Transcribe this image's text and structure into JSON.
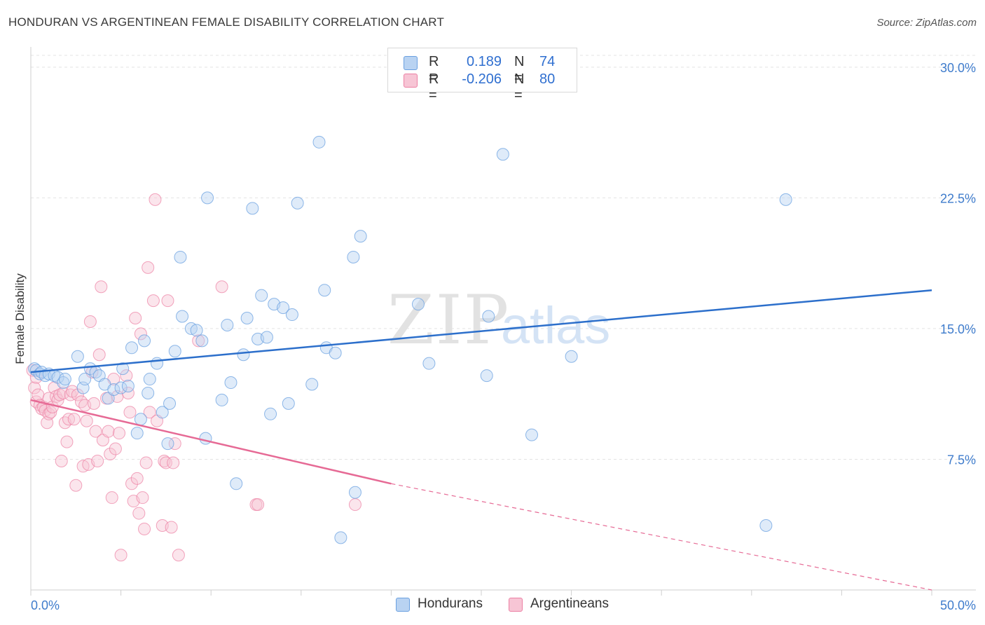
{
  "header": {
    "title": "HONDURAN VS ARGENTINEAN FEMALE DISABILITY CORRELATION CHART",
    "source": "Source: ZipAtlas.com"
  },
  "watermark": {
    "zip": "ZIP",
    "atlas": "atlas"
  },
  "legend": {
    "rows": [
      {
        "r_label": "R =",
        "r_value": "0.189",
        "n_label": "N =",
        "n_value": "74",
        "color": "#a9c8ee"
      },
      {
        "r_label": "R =",
        "r_value": "-0.206",
        "n_label": "N =",
        "n_value": "80",
        "color": "#f6b8cc"
      }
    ]
  },
  "bottom_legend": {
    "hondurans": "Hondurans",
    "argentineans": "Argentineans"
  },
  "chart_data": {
    "type": "scatter",
    "title": "HONDURAN VS ARGENTINEAN FEMALE DISABILITY CORRELATION CHART",
    "ylabel": "Female Disability",
    "xlabel": "",
    "xlim": [
      0,
      50
    ],
    "ylim": [
      0,
      31
    ],
    "x_tick_labels": [
      "0.0%",
      "50.0%"
    ],
    "y_ticks": [
      7.5,
      15.0,
      22.5,
      30.0
    ],
    "y_tick_labels": [
      "7.5%",
      "15.0%",
      "22.5%",
      "30.0%"
    ],
    "grid": "horizontal dashed",
    "legend_position": "top-center",
    "colors": {
      "hondurans": "#6aa0e0",
      "hondurans_fill": "#b9d3f2",
      "argentineans": "#ec7fa3",
      "argentineans_fill": "#f7c5d5",
      "hondurans_line": "#2c6fcb",
      "argentineans_line": "#e66a95"
    },
    "series": [
      {
        "name": "Hondurans",
        "trend": {
          "x": [
            0,
            50
          ],
          "y": [
            12.5,
            17.2
          ]
        },
        "points": [
          [
            0.2,
            12.7
          ],
          [
            0.3,
            12.6
          ],
          [
            0.5,
            12.4
          ],
          [
            0.6,
            12.5
          ],
          [
            0.8,
            12.3
          ],
          [
            1.0,
            12.4
          ],
          [
            1.3,
            12.3
          ],
          [
            1.5,
            12.2
          ],
          [
            1.8,
            11.9
          ],
          [
            1.9,
            12.1
          ],
          [
            2.6,
            13.4
          ],
          [
            2.9,
            11.6
          ],
          [
            3.0,
            12.1
          ],
          [
            3.3,
            12.7
          ],
          [
            3.6,
            12.5
          ],
          [
            3.8,
            12.3
          ],
          [
            4.1,
            11.8
          ],
          [
            4.3,
            11.0
          ],
          [
            4.6,
            11.5
          ],
          [
            5.0,
            11.6
          ],
          [
            5.1,
            12.7
          ],
          [
            5.4,
            11.7
          ],
          [
            5.6,
            13.9
          ],
          [
            5.9,
            9.0
          ],
          [
            6.1,
            9.8
          ],
          [
            6.3,
            14.3
          ],
          [
            6.5,
            11.3
          ],
          [
            6.6,
            12.1
          ],
          [
            7.0,
            13.0
          ],
          [
            7.3,
            10.2
          ],
          [
            7.6,
            8.4
          ],
          [
            7.7,
            10.7
          ],
          [
            8.0,
            13.7
          ],
          [
            8.3,
            19.1
          ],
          [
            8.4,
            15.7
          ],
          [
            8.9,
            15.0
          ],
          [
            9.2,
            14.9
          ],
          [
            9.5,
            14.3
          ],
          [
            9.7,
            8.7
          ],
          [
            9.8,
            22.5
          ],
          [
            10.6,
            10.9
          ],
          [
            10.9,
            15.2
          ],
          [
            11.1,
            11.9
          ],
          [
            11.4,
            6.1
          ],
          [
            11.8,
            13.5
          ],
          [
            12.0,
            15.6
          ],
          [
            12.3,
            21.9
          ],
          [
            12.6,
            14.4
          ],
          [
            12.8,
            16.9
          ],
          [
            13.1,
            14.5
          ],
          [
            13.3,
            10.1
          ],
          [
            13.5,
            16.4
          ],
          [
            14.0,
            16.2
          ],
          [
            14.3,
            10.7
          ],
          [
            14.5,
            15.8
          ],
          [
            14.8,
            22.2
          ],
          [
            15.6,
            11.8
          ],
          [
            16.0,
            25.7
          ],
          [
            16.3,
            17.2
          ],
          [
            16.4,
            13.9
          ],
          [
            16.9,
            13.6
          ],
          [
            17.2,
            3.0
          ],
          [
            17.9,
            19.1
          ],
          [
            18.0,
            5.6
          ],
          [
            18.3,
            20.3
          ],
          [
            21.5,
            16.4
          ],
          [
            22.1,
            13.0
          ],
          [
            25.3,
            12.3
          ],
          [
            25.4,
            15.7
          ],
          [
            26.2,
            25.0
          ],
          [
            27.8,
            8.9
          ],
          [
            30.0,
            13.4
          ],
          [
            40.8,
            3.7
          ],
          [
            41.9,
            22.4
          ]
        ]
      },
      {
        "name": "Argentineans",
        "trend": {
          "x": [
            0,
            20
          ],
          "y": [
            10.9,
            6.1
          ]
        },
        "trend_dashed": {
          "x": [
            20,
            50
          ],
          "y": [
            6.1,
            0
          ]
        },
        "points": [
          [
            0.1,
            12.6
          ],
          [
            0.2,
            11.6
          ],
          [
            0.3,
            12.2
          ],
          [
            0.3,
            10.8
          ],
          [
            0.4,
            11.2
          ],
          [
            0.5,
            10.6
          ],
          [
            0.6,
            10.4
          ],
          [
            0.7,
            10.5
          ],
          [
            0.8,
            10.3
          ],
          [
            0.9,
            9.6
          ],
          [
            1.0,
            11.0
          ],
          [
            1.0,
            10.1
          ],
          [
            1.1,
            10.2
          ],
          [
            1.2,
            10.5
          ],
          [
            1.3,
            11.6
          ],
          [
            1.4,
            11.1
          ],
          [
            1.5,
            10.9
          ],
          [
            1.6,
            11.2
          ],
          [
            1.7,
            7.4
          ],
          [
            1.8,
            11.3
          ],
          [
            1.9,
            9.6
          ],
          [
            2.0,
            8.5
          ],
          [
            2.1,
            9.8
          ],
          [
            2.2,
            11.2
          ],
          [
            2.3,
            11.4
          ],
          [
            2.4,
            9.8
          ],
          [
            2.5,
            6.0
          ],
          [
            2.6,
            11.2
          ],
          [
            2.8,
            10.8
          ],
          [
            2.9,
            7.1
          ],
          [
            3.0,
            10.6
          ],
          [
            3.1,
            9.7
          ],
          [
            3.2,
            7.2
          ],
          [
            3.3,
            15.4
          ],
          [
            3.4,
            12.5
          ],
          [
            3.5,
            10.7
          ],
          [
            3.6,
            9.1
          ],
          [
            3.7,
            7.4
          ],
          [
            3.8,
            13.5
          ],
          [
            3.9,
            17.4
          ],
          [
            4.0,
            8.6
          ],
          [
            4.2,
            11.0
          ],
          [
            4.3,
            9.1
          ],
          [
            4.4,
            7.8
          ],
          [
            4.5,
            5.3
          ],
          [
            4.6,
            12.1
          ],
          [
            4.7,
            8.1
          ],
          [
            4.8,
            11.1
          ],
          [
            4.9,
            9.0
          ],
          [
            5.0,
            2.0
          ],
          [
            5.3,
            12.3
          ],
          [
            5.4,
            11.3
          ],
          [
            5.5,
            10.2
          ],
          [
            5.6,
            6.1
          ],
          [
            5.7,
            5.1
          ],
          [
            5.8,
            15.6
          ],
          [
            5.9,
            6.4
          ],
          [
            6.0,
            4.4
          ],
          [
            6.1,
            14.7
          ],
          [
            6.2,
            5.3
          ],
          [
            6.3,
            3.5
          ],
          [
            6.4,
            7.3
          ],
          [
            6.5,
            18.5
          ],
          [
            6.6,
            10.2
          ],
          [
            6.8,
            16.6
          ],
          [
            6.9,
            22.4
          ],
          [
            7.0,
            9.7
          ],
          [
            7.3,
            3.7
          ],
          [
            7.4,
            7.4
          ],
          [
            7.5,
            7.3
          ],
          [
            7.6,
            16.6
          ],
          [
            7.8,
            3.6
          ],
          [
            7.9,
            7.3
          ],
          [
            8.0,
            8.4
          ],
          [
            8.2,
            2.0
          ],
          [
            9.3,
            14.3
          ],
          [
            10.6,
            17.4
          ],
          [
            12.5,
            4.9
          ],
          [
            12.6,
            4.9
          ],
          [
            18.0,
            4.9
          ]
        ]
      }
    ]
  }
}
